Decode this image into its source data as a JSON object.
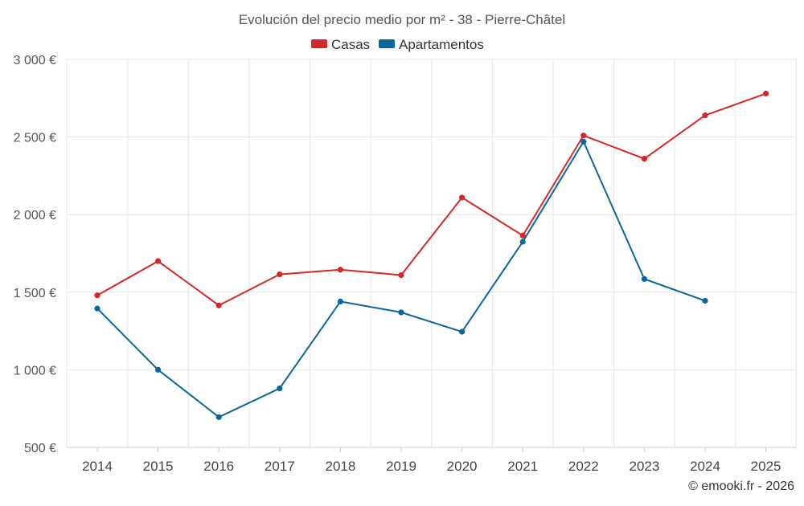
{
  "chart_data": {
    "type": "line",
    "title": "Evolución del precio medio por m² - 38 - Pierre-Châtel",
    "categories": [
      "2014",
      "2015",
      "2016",
      "2017",
      "2018",
      "2019",
      "2020",
      "2021",
      "2022",
      "2023",
      "2024",
      "2025"
    ],
    "series": [
      {
        "name": "Casas",
        "color": "#d62728",
        "values": [
          1480,
          1700,
          1415,
          1615,
          1645,
          1610,
          2110,
          1865,
          2510,
          2360,
          2640,
          2780
        ]
      },
      {
        "name": "Apartamentos",
        "color": "#09679a",
        "values": [
          1395,
          1000,
          695,
          880,
          1440,
          1370,
          1245,
          1825,
          2470,
          1585,
          1445,
          null
        ]
      }
    ],
    "ylim": [
      500,
      3000
    ],
    "yticks": [
      {
        "value": 500,
        "label": "500 €"
      },
      {
        "value": 1000,
        "label": "1 000 €"
      },
      {
        "value": 1500,
        "label": "1 500 €"
      },
      {
        "value": 2000,
        "label": "2 000 €"
      },
      {
        "value": 2500,
        "label": "2 500 €"
      },
      {
        "value": 3000,
        "label": "3 000 €"
      }
    ],
    "xlabel": "",
    "ylabel": "",
    "grid": true,
    "legend_position": "top-center"
  },
  "credit": "© emooki.fr - 2026"
}
